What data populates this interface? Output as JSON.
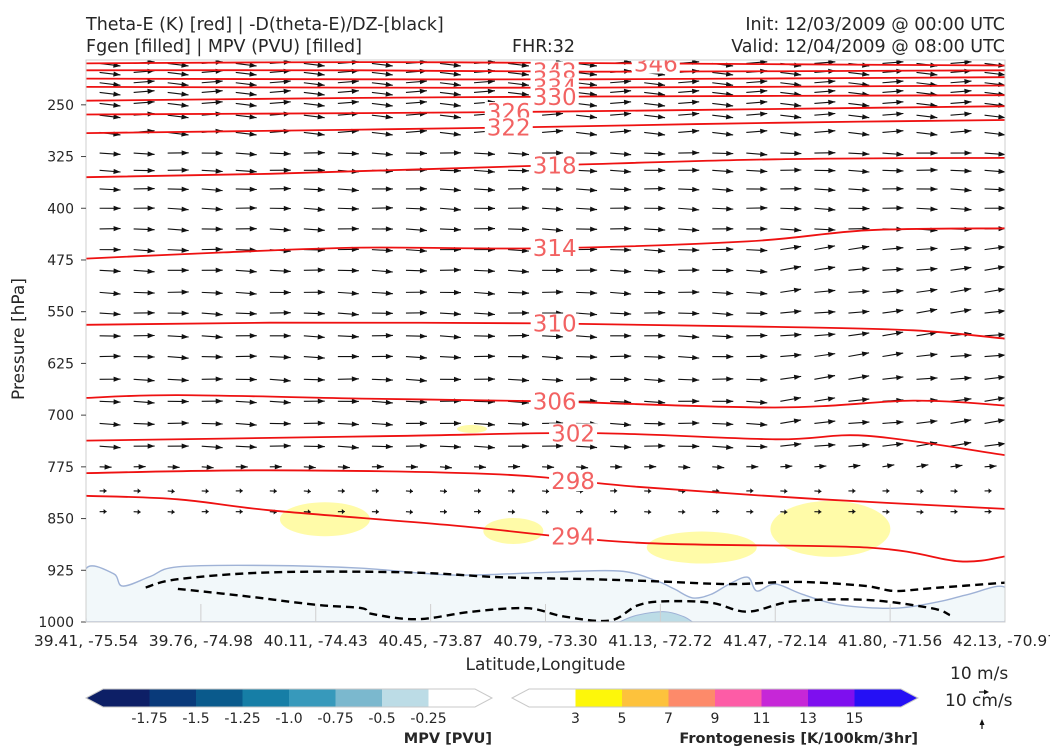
{
  "header": {
    "title_line1": "Theta-E (K) [red] | -D(theta-E)/DZ-[black]",
    "title_line2": "Fgen [filled] | MPV (PVU) [filled]",
    "fhr": "FHR:32",
    "init": "Init: 12/03/2009 @ 00:00 UTC",
    "valid": "Valid: 12/04/2009 @ 08:00 UTC"
  },
  "wind_key": {
    "speed_label": "10 m/s",
    "vertical_label": "10 cm/s"
  },
  "colors": {
    "theta_e": "#ee1111",
    "theta_e_label": "#f26262",
    "stability": "#000000",
    "wind": "#111111",
    "mpv_outline": "#9fb2d6",
    "mpv_fill": "#f2f8fa",
    "fgen_fill": "#fffb9e"
  },
  "chart_data": {
    "type": "cross-section",
    "xlabel": "Latitude,Longitude",
    "ylabel": "Pressure [hPa]",
    "x_ticks": [
      "39.41, -75.54",
      "39.76, -74.98",
      "40.11, -74.43",
      "40.45, -73.87",
      "40.79, -73.30",
      "41.13, -72.72",
      "41.47, -72.14",
      "41.80, -71.56",
      "42.13, -70.97"
    ],
    "y_ticks": [
      250,
      325,
      400,
      475,
      550,
      625,
      700,
      775,
      850,
      925,
      1000
    ],
    "ylim": [
      185,
      1000
    ],
    "theta_e_contours": [
      {
        "level": 346,
        "label": "346",
        "label_x": 0.62,
        "points": [
          [
            0,
            190
          ],
          [
            0.3,
            188
          ],
          [
            0.6,
            190
          ],
          [
            1,
            193
          ]
        ]
      },
      {
        "level": 342,
        "label": "342",
        "label_x": 0.51,
        "points": [
          [
            0,
            200
          ],
          [
            0.3,
            200
          ],
          [
            0.55,
            202
          ],
          [
            1,
            200
          ]
        ]
      },
      {
        "level": 338,
        "label": "338",
        "label_x": 0.51,
        "points": [
          [
            0,
            212
          ],
          [
            0.3,
            213
          ],
          [
            0.55,
            213
          ],
          [
            1,
            210
          ]
        ]
      },
      {
        "level": 334,
        "label": "334",
        "label_x": 0.51,
        "points": [
          [
            0,
            224
          ],
          [
            0.3,
            225
          ],
          [
            0.55,
            225
          ],
          [
            1,
            222
          ]
        ]
      },
      {
        "level": 330,
        "label": "330",
        "label_x": 0.51,
        "points": [
          [
            0,
            244
          ],
          [
            0.3,
            240
          ],
          [
            0.55,
            238
          ],
          [
            1,
            236
          ]
        ]
      },
      {
        "level": 326,
        "label": "326",
        "label_x": 0.46,
        "points": [
          [
            0,
            264
          ],
          [
            0.3,
            262
          ],
          [
            0.5,
            260
          ],
          [
            0.75,
            256
          ],
          [
            1,
            252
          ]
        ]
      },
      {
        "level": 322,
        "label": "322",
        "label_x": 0.46,
        "points": [
          [
            0,
            291
          ],
          [
            0.3,
            286
          ],
          [
            0.5,
            282
          ],
          [
            0.75,
            276
          ],
          [
            1,
            272
          ]
        ]
      },
      {
        "level": 318,
        "label": "318",
        "label_x": 0.51,
        "points": [
          [
            0,
            355
          ],
          [
            0.2,
            350
          ],
          [
            0.5,
            338
          ],
          [
            0.75,
            329
          ],
          [
            1,
            327
          ]
        ]
      },
      {
        "level": 314,
        "label": "314",
        "label_x": 0.51,
        "points": [
          [
            0,
            473
          ],
          [
            0.15,
            464
          ],
          [
            0.3,
            457
          ],
          [
            0.5,
            458
          ],
          [
            0.72,
            448
          ],
          [
            0.85,
            432
          ],
          [
            1,
            429
          ]
        ]
      },
      {
        "level": 310,
        "label": "310",
        "label_x": 0.51,
        "points": [
          [
            0,
            569
          ],
          [
            0.2,
            566
          ],
          [
            0.5,
            567
          ],
          [
            0.75,
            572
          ],
          [
            0.9,
            577
          ],
          [
            1,
            589
          ]
        ]
      },
      {
        "level": 306,
        "label": "306",
        "label_x": 0.51,
        "points": [
          [
            0,
            675
          ],
          [
            0.1,
            671
          ],
          [
            0.3,
            676
          ],
          [
            0.5,
            680
          ],
          [
            0.75,
            689
          ],
          [
            0.9,
            679
          ],
          [
            1,
            686
          ]
        ]
      },
      {
        "level": 302,
        "label": "302",
        "label_x": 0.53,
        "points": [
          [
            0,
            737
          ],
          [
            0.15,
            734
          ],
          [
            0.35,
            730
          ],
          [
            0.55,
            726
          ],
          [
            0.75,
            735
          ],
          [
            0.85,
            730
          ],
          [
            1,
            758
          ]
        ]
      },
      {
        "level": 298,
        "label": "298",
        "label_x": 0.53,
        "points": [
          [
            0,
            784
          ],
          [
            0.2,
            780
          ],
          [
            0.45,
            786
          ],
          [
            0.6,
            804
          ],
          [
            0.8,
            822
          ],
          [
            1,
            836
          ]
        ]
      },
      {
        "level": 294,
        "label": "294",
        "label_x": 0.53,
        "points": [
          [
            0,
            817
          ],
          [
            0.1,
            822
          ],
          [
            0.2,
            838
          ],
          [
            0.4,
            860
          ],
          [
            0.6,
            885
          ],
          [
            0.85,
            892
          ],
          [
            0.95,
            912
          ],
          [
            1,
            905
          ]
        ]
      }
    ],
    "stability_contours": [
      [
        [
          0.065,
          950
        ],
        [
          0.1,
          938
        ],
        [
          0.2,
          928
        ],
        [
          0.35,
          928
        ],
        [
          0.45,
          935
        ],
        [
          0.55,
          938
        ],
        [
          0.62,
          941
        ],
        [
          0.7,
          945
        ],
        [
          0.76,
          942
        ],
        [
          0.8,
          943
        ],
        [
          0.85,
          948
        ],
        [
          0.88,
          955
        ],
        [
          0.92,
          951
        ],
        [
          1,
          943
        ]
      ],
      [
        [
          0.1,
          952
        ],
        [
          0.17,
          962
        ],
        [
          0.25,
          975
        ],
        [
          0.3,
          980
        ],
        [
          0.31,
          988
        ],
        [
          0.36,
          996
        ],
        [
          0.42,
          985
        ],
        [
          0.48,
          980
        ],
        [
          0.52,
          992
        ],
        [
          0.57,
          998
        ],
        [
          0.6,
          976
        ],
        [
          0.63,
          970
        ],
        [
          0.68,
          972
        ],
        [
          0.72,
          985
        ],
        [
          0.77,
          970
        ],
        [
          0.85,
          968
        ],
        [
          0.92,
          980
        ],
        [
          0.94,
          990
        ]
      ]
    ],
    "mpv_filled": {
      "shown_range": [
        -0.25,
        0
      ]
    },
    "fgen_filled": {
      "shown_range": [
        3,
        5
      ]
    },
    "colorbars": [
      {
        "label": "MPV [PVU]",
        "ticks": [
          "-1.75",
          "-1.5",
          "-1.25",
          "-1.0",
          "-0.75",
          "-0.5",
          "-0.25"
        ],
        "colors": [
          "#0d1f66",
          "#093a7a",
          "#0a5a8c",
          "#167ea6",
          "#3799bb",
          "#7bb8ce",
          "#bcdce6",
          "#ffffff"
        ]
      },
      {
        "label": "Frontogenesis [K/100km/3hr]",
        "ticks": [
          "3",
          "5",
          "7",
          "9",
          "11",
          "13",
          "15"
        ],
        "colors": [
          "#ffffff",
          "#fdf70a",
          "#fdc23c",
          "#fd8a6a",
          "#fd5ca6",
          "#c627d7",
          "#7e0fef",
          "#2510f5"
        ]
      }
    ]
  }
}
